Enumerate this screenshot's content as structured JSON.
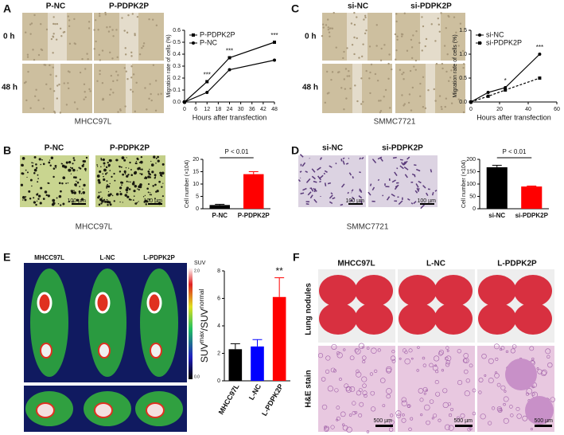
{
  "figure": {
    "A": {
      "letter": "A",
      "cols": [
        "P-NC",
        "P-PDPK2P"
      ],
      "rows": [
        "0 h",
        "48 h"
      ],
      "cell_line": "MHCC97L"
    },
    "B": {
      "letter": "B",
      "cols": [
        "P-NC",
        "P-PDPK2P"
      ],
      "scale": [
        "100 µm",
        "100 µm"
      ],
      "cell_line": "MHCC97L"
    },
    "C": {
      "letter": "C",
      "cols": [
        "si-NC",
        "si-PDPK2P"
      ],
      "rows": [
        "0 h",
        "48 h"
      ],
      "cell_line": "SMMC7721"
    },
    "D": {
      "letter": "D",
      "cols": [
        "si-NC",
        "si-PDPK2P"
      ],
      "scale": [
        "100 µm",
        "100 µm"
      ],
      "cell_line": "SMMC7721"
    },
    "E": {
      "letter": "E",
      "cols": [
        "MHCC97L",
        "L-NC",
        "L-PDPK2P"
      ],
      "colorbar": {
        "title": "SUV",
        "max": "2.0",
        "min": "0.0"
      }
    },
    "F": {
      "letter": "F",
      "cols": [
        "MHCC97L",
        "L-NC",
        "L-PDPK2P"
      ],
      "rows": [
        "Lung nodules",
        "H&E stain"
      ],
      "scale": [
        "500 µm",
        "500 µm",
        "500 µm"
      ]
    }
  },
  "chart_data": [
    {
      "type": "line",
      "xlabel": "Hours after transfection",
      "ylabel": "Migration rate of cells (%)",
      "x": [
        0,
        12,
        24,
        48
      ],
      "series": [
        {
          "name": "P-PDPK2P",
          "color": "#000000",
          "marker": "square",
          "line_style": "solid",
          "values": [
            0,
            0.17,
            0.37,
            0.5
          ]
        },
        {
          "name": "P-NC",
          "color": "#000000",
          "marker": "circle",
          "line_style": "solid",
          "values": [
            0,
            0.08,
            0.27,
            0.35
          ]
        }
      ],
      "xlim": [
        0,
        48
      ],
      "xticks": [
        0,
        6,
        12,
        18,
        24,
        30,
        36,
        42,
        48
      ],
      "ylim": [
        0,
        0.6
      ],
      "yticks": [
        {
          "value": 0,
          "label": "0.0"
        },
        0.1,
        0.2,
        0.3,
        0.4,
        0.5,
        0.6
      ],
      "annotations": [
        {
          "text": "***",
          "x": 12
        },
        {
          "text": "***",
          "x": 24
        },
        {
          "text": "***",
          "x": 48
        }
      ]
    },
    {
      "type": "line",
      "xlabel": "Hours after transfection",
      "ylabel": "Migration rate of cells (%)",
      "x": [
        0,
        12,
        24,
        48
      ],
      "series": [
        {
          "name": "si-NC",
          "color": "#000000",
          "marker": "circle",
          "line_style": "solid",
          "values": [
            0,
            0.2,
            0.3,
            1.0
          ]
        },
        {
          "name": "si-PDPK2P",
          "color": "#000000",
          "marker": "square",
          "line_style": "dashed",
          "values": [
            0,
            0.12,
            0.25,
            0.5
          ]
        }
      ],
      "xlim": [
        0,
        60
      ],
      "xticks": [
        0,
        20,
        40,
        60
      ],
      "ylim": [
        0,
        1.5
      ],
      "yticks": [
        {
          "value": 0,
          "label": "0.0"
        },
        0.5,
        {
          "value": 1,
          "label": "1.0"
        },
        1.5
      ],
      "annotations": [
        {
          "text": "*",
          "x": 24
        },
        {
          "text": "***",
          "x": 48
        }
      ]
    },
    {
      "type": "bar",
      "ylabel": "Cell number (×104)",
      "categories": [
        "P-NC",
        "P-PDPK2P"
      ],
      "values": [
        1.5,
        14
      ],
      "errors": [
        0.3,
        1.0
      ],
      "colors": [
        "#000000",
        "#ff0000"
      ],
      "ylim": [
        0,
        20
      ],
      "yticks": [
        0,
        5,
        10,
        15,
        20
      ],
      "annotation": "P < 0.01"
    },
    {
      "type": "bar",
      "ylabel": "Cell number (×104)",
      "categories": [
        "si-NC",
        "si-PDPK2P"
      ],
      "values": [
        168,
        90
      ],
      "errors": [
        8,
        2
      ],
      "colors": [
        "#000000",
        "#ff0000"
      ],
      "ylim": [
        0,
        200
      ],
      "yticks": [
        0,
        50,
        100,
        150,
        200
      ],
      "annotation": "P < 0.01"
    },
    {
      "type": "bar",
      "ylabel": [
        "SUV",
        "max",
        "/SUV",
        "normal"
      ],
      "categories": [
        "MHCC97L",
        "L-NC",
        "L-PDPK2P"
      ],
      "values": [
        2.3,
        2.5,
        6.1
      ],
      "errors": [
        0.4,
        0.5,
        1.4
      ],
      "colors": [
        "#000000",
        "#0000ff",
        "#ff0000"
      ],
      "ylim": [
        0,
        8
      ],
      "yticks": [
        0,
        2,
        4,
        6,
        8
      ],
      "star": "**"
    }
  ]
}
